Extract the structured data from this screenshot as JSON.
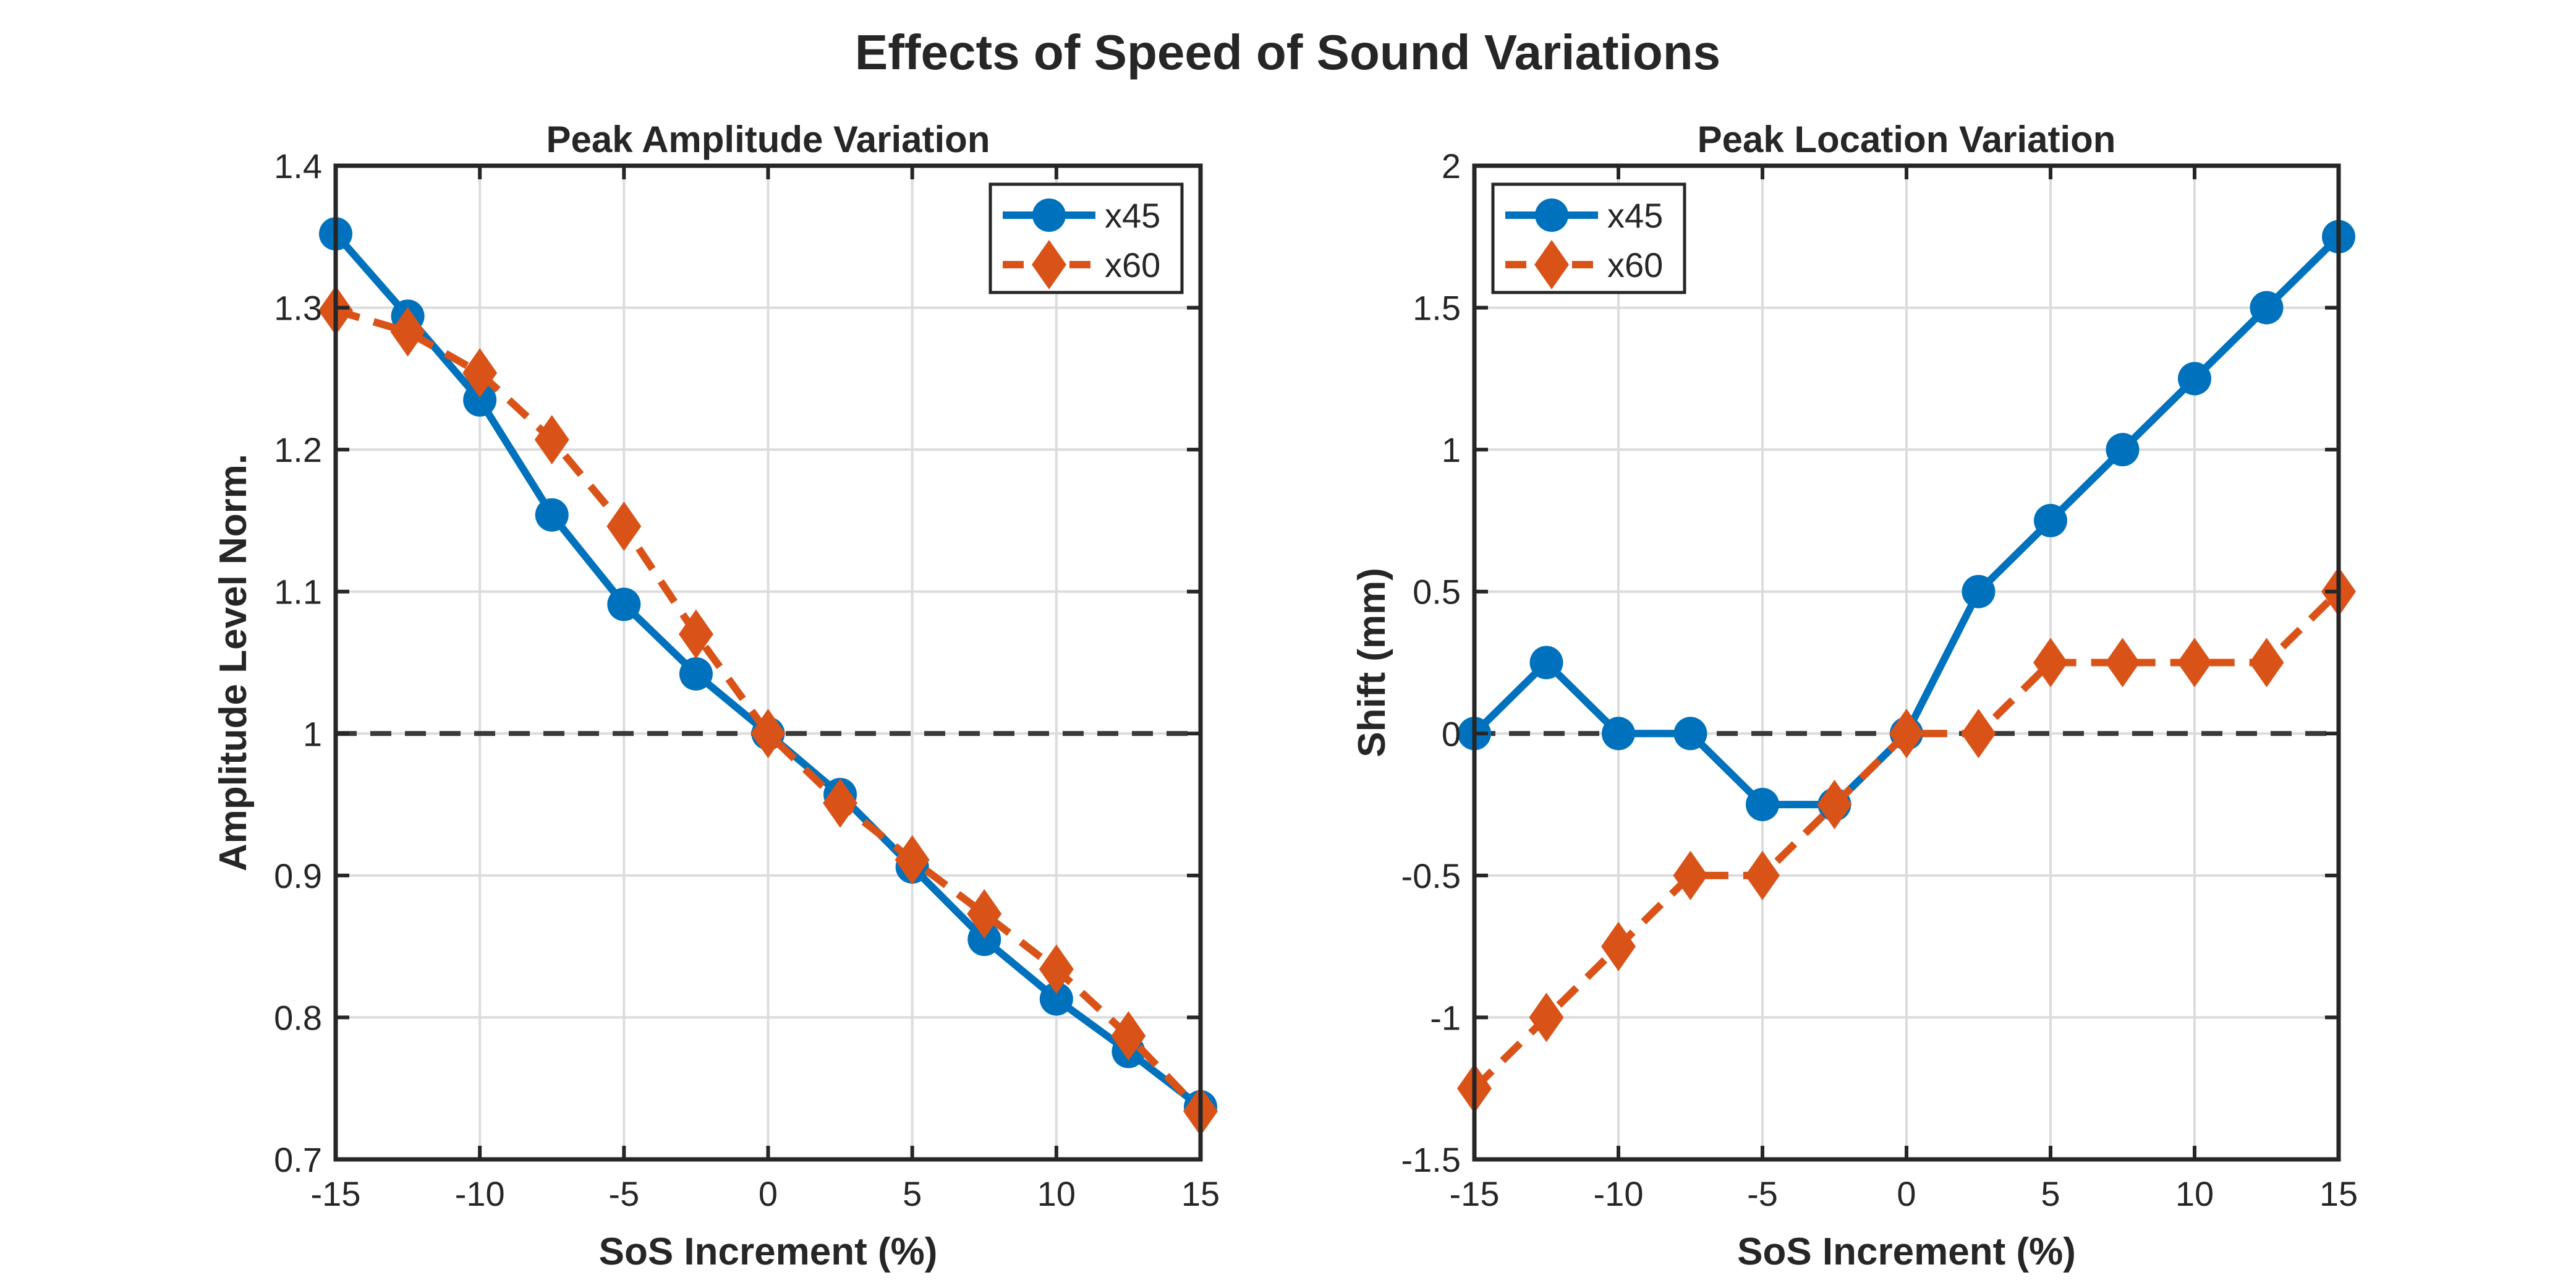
{
  "figure_title": "Effects of Speed of Sound Variations",
  "colors": {
    "x45": "#0072BD",
    "x60": "#D95319",
    "reference": "#3a3a3a",
    "axis": "#262626",
    "grid": "#dcdcdc"
  },
  "chart_data": [
    {
      "type": "line",
      "title": "Peak Amplitude Variation",
      "xlabel": "SoS Increment (%)",
      "ylabel": "Amplitude Level Norm.",
      "xlim": [
        -15,
        15
      ],
      "ylim": [
        0.7,
        1.4
      ],
      "xticks": [
        -15,
        -10,
        -5,
        0,
        5,
        10,
        15
      ],
      "xtick_labels": [
        "-15",
        "-10",
        "-5",
        "0",
        "5",
        "10",
        "15"
      ],
      "yticks": [
        0.7,
        0.8,
        0.9,
        1.0,
        1.1,
        1.2,
        1.3,
        1.4
      ],
      "ytick_labels": [
        "0.7",
        "0.8",
        "0.9",
        "1",
        "1.1",
        "1.2",
        "1.3",
        "1.4"
      ],
      "grid": true,
      "legend_position": "top-right",
      "reference_line": {
        "y": 1,
        "style": "dashed"
      },
      "x": [
        -15,
        -12.5,
        -10,
        -7.5,
        -5,
        -2.5,
        0,
        2.5,
        5,
        7.5,
        10,
        12.5,
        15
      ],
      "series": [
        {
          "name": "x45",
          "marker": "circle",
          "line": "solid",
          "values": [
            1.352,
            1.294,
            1.235,
            1.154,
            1.091,
            1.042,
            1.0,
            0.957,
            0.906,
            0.855,
            0.813,
            0.776,
            0.737
          ]
        },
        {
          "name": "x60",
          "marker": "diamond",
          "line": "dashed",
          "values": [
            1.298,
            1.283,
            1.254,
            1.207,
            1.146,
            1.07,
            1.0,
            0.951,
            0.911,
            0.873,
            0.834,
            0.787,
            0.734
          ]
        }
      ]
    },
    {
      "type": "line",
      "title": "Peak Location Variation",
      "xlabel": "SoS Increment (%)",
      "ylabel": "Shift (mm)",
      "xlim": [
        -15,
        15
      ],
      "ylim": [
        -1.5,
        2
      ],
      "xticks": [
        -15,
        -10,
        -5,
        0,
        5,
        10,
        15
      ],
      "xtick_labels": [
        "-15",
        "-10",
        "-5",
        "0",
        "5",
        "10",
        "15"
      ],
      "yticks": [
        -1.5,
        -1,
        -0.5,
        0,
        0.5,
        1,
        1.5,
        2
      ],
      "ytick_labels": [
        "-1.5",
        "-1",
        "-0.5",
        "0",
        "0.5",
        "1",
        "1.5",
        "2"
      ],
      "grid": true,
      "legend_position": "top-left",
      "reference_line": {
        "y": 0,
        "style": "dashed"
      },
      "x": [
        -15,
        -12.5,
        -10,
        -7.5,
        -5,
        -2.5,
        0,
        2.5,
        5,
        7.5,
        10,
        12.5,
        15
      ],
      "series": [
        {
          "name": "x45",
          "marker": "circle",
          "line": "solid",
          "values": [
            0,
            0.25,
            0,
            0,
            -0.25,
            -0.25,
            0,
            0.5,
            0.75,
            1.0,
            1.25,
            1.5,
            1.75
          ]
        },
        {
          "name": "x60",
          "marker": "diamond",
          "line": "dashed",
          "values": [
            -1.25,
            -1.0,
            -0.75,
            -0.5,
            -0.5,
            -0.25,
            0,
            0,
            0.25,
            0.25,
            0.25,
            0.25,
            0.5
          ]
        }
      ]
    }
  ]
}
